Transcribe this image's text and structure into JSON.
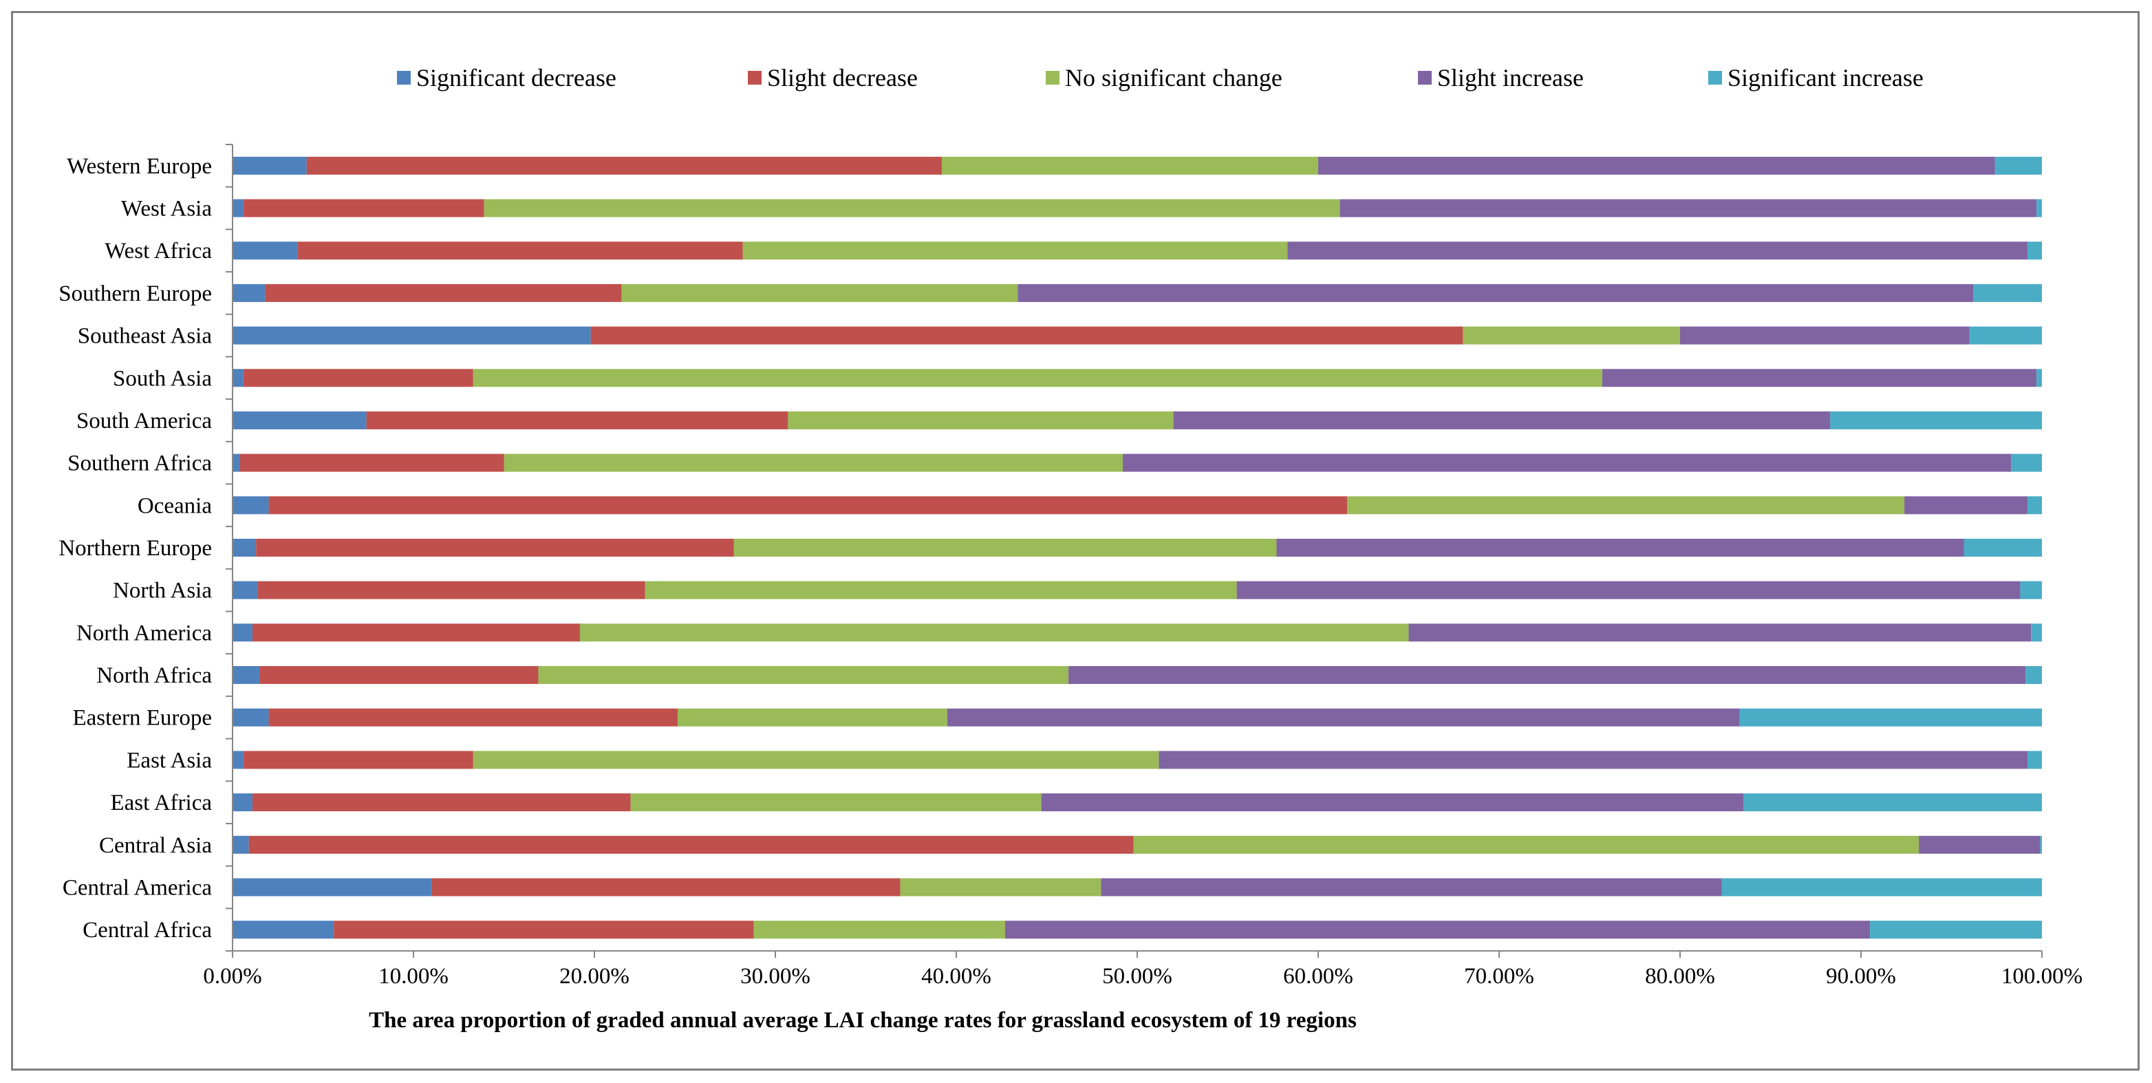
{
  "chart_data": {
    "type": "bar",
    "orientation": "horizontal",
    "stacked": true,
    "percent_stacked": true,
    "title": "",
    "xlabel": "The area proportion  of graded annual average LAI change rates for grassland  ecosystem of 19 regions",
    "ylabel": "",
    "xlim": [
      0,
      100
    ],
    "xticks": [
      "0.00%",
      "10.00%",
      "20.00%",
      "30.00%",
      "40.00%",
      "50.00%",
      "60.00%",
      "70.00%",
      "80.00%",
      "90.00%",
      "100.00%"
    ],
    "legend_position": "top",
    "grid": false,
    "categories": [
      "Western Europe",
      "West Asia",
      "West Africa",
      "Southern Europe",
      "Southeast Asia",
      "South Asia",
      "South America",
      "Southern Africa",
      "Oceania",
      "Northern Europe",
      "North Asia",
      "North America",
      "North Africa",
      "Eastern Europe",
      "East Asia",
      "East Africa",
      "Central Asia",
      "Central America",
      "Central Africa"
    ],
    "series": [
      {
        "name": "Significant decrease",
        "color": "#4f81bd",
        "values": [
          4.1,
          0.6,
          3.6,
          1.8,
          19.8,
          0.6,
          7.4,
          0.4,
          2.0,
          1.3,
          1.4,
          1.1,
          1.5,
          2.0,
          0.6,
          1.1,
          0.9,
          11.0,
          5.6
        ]
      },
      {
        "name": "Slight decrease",
        "color": "#c0504d",
        "values": [
          35.1,
          13.3,
          24.6,
          19.7,
          48.2,
          12.7,
          23.3,
          14.6,
          59.6,
          26.4,
          21.4,
          18.1,
          15.4,
          22.6,
          12.7,
          20.9,
          48.9,
          25.9,
          23.2
        ]
      },
      {
        "name": "No significant change",
        "color": "#9bbb59",
        "values": [
          20.8,
          47.3,
          30.1,
          21.9,
          12.0,
          62.4,
          21.3,
          34.2,
          30.8,
          30.0,
          32.7,
          45.8,
          29.3,
          14.9,
          37.9,
          22.7,
          43.4,
          11.1,
          13.9
        ]
      },
      {
        "name": "Slight increase",
        "color": "#8064a2",
        "values": [
          37.4,
          38.5,
          40.9,
          52.8,
          16.0,
          24.0,
          36.3,
          49.1,
          6.8,
          38.0,
          43.3,
          34.4,
          52.9,
          43.8,
          48.0,
          38.8,
          6.7,
          34.3,
          47.8
        ]
      },
      {
        "name": "Significant increase",
        "color": "#4bacc6",
        "values": [
          2.6,
          0.3,
          0.8,
          3.8,
          4.0,
          0.3,
          11.7,
          1.7,
          0.8,
          4.3,
          1.2,
          0.6,
          0.9,
          16.7,
          0.8,
          16.5,
          0.1,
          17.7,
          9.5
        ]
      }
    ]
  }
}
